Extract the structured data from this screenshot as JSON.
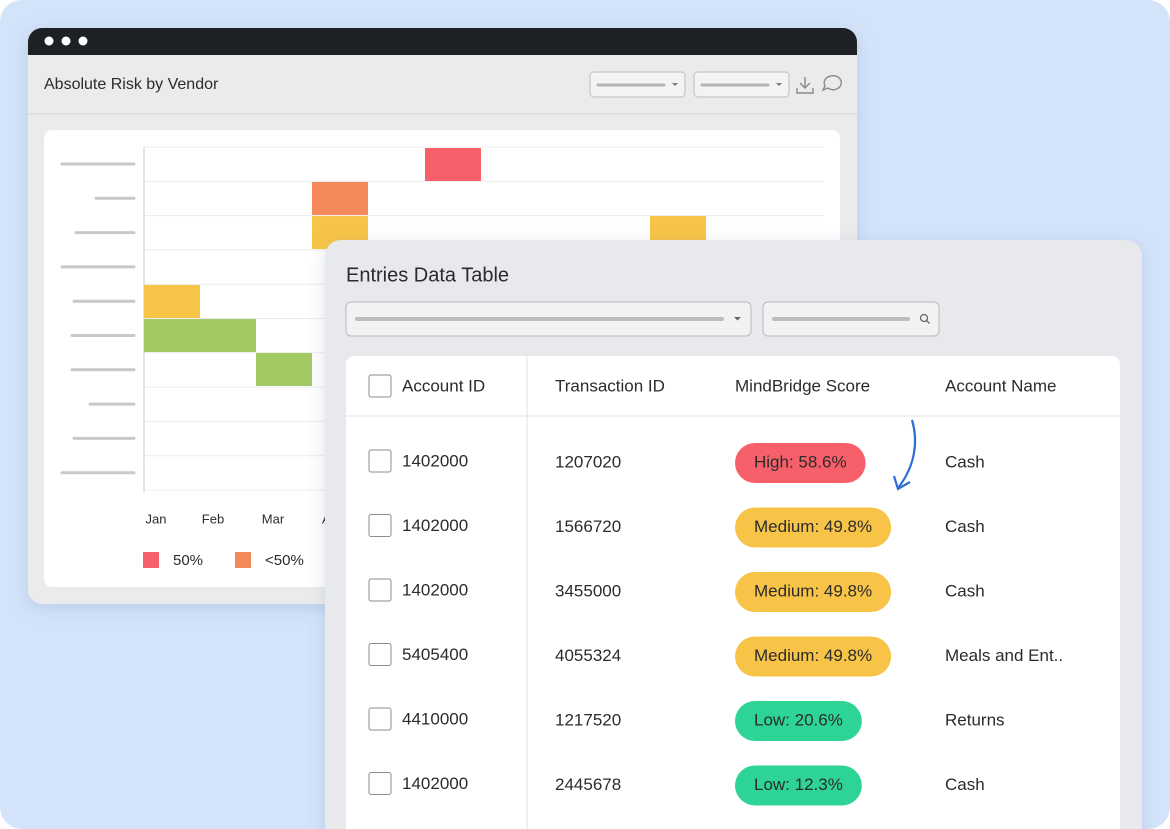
{
  "window": {
    "title": "Absolute Risk by Vendor",
    "months": [
      "Jan",
      "Feb",
      "Mar",
      "A"
    ],
    "legend": [
      {
        "label": "50%",
        "color": "#f7606b"
      },
      {
        "label": "<50%",
        "color": "#f5895a"
      }
    ]
  },
  "table": {
    "title": "Entries Data Table",
    "headers": [
      "Account ID",
      "Transaction ID",
      "MindBridge Score",
      "Account Name"
    ],
    "rows": [
      [
        "1402000",
        "1207020",
        "High: 58.6%",
        "Cash"
      ],
      [
        "1402000",
        "1566720",
        "Medium: 49.8%",
        "Cash"
      ],
      [
        "1402000",
        "3455000",
        "Medium: 49.8%",
        "Cash"
      ],
      [
        "5405400",
        "4055324",
        "Medium: 49.8%",
        "Meals and Ent.."
      ],
      [
        "4410000",
        "1217520",
        "Low: 20.6%",
        "Returns"
      ],
      [
        "1402000",
        "2445678",
        "Low: 12.3%",
        "Cash"
      ]
    ],
    "score_styles": [
      {
        "fill": "#f7606b",
        "text": "#ffffff"
      },
      {
        "fill": "#f8c447",
        "text": "#2a2a2a"
      },
      {
        "fill": "#f8c447",
        "text": "#2a2a2a"
      },
      {
        "fill": "#f8c447",
        "text": "#2a2a2a"
      },
      {
        "fill": "#2ed495",
        "text": "#2a2a2a"
      },
      {
        "fill": "#2ed495",
        "text": "#2a2a2a"
      }
    ]
  }
}
